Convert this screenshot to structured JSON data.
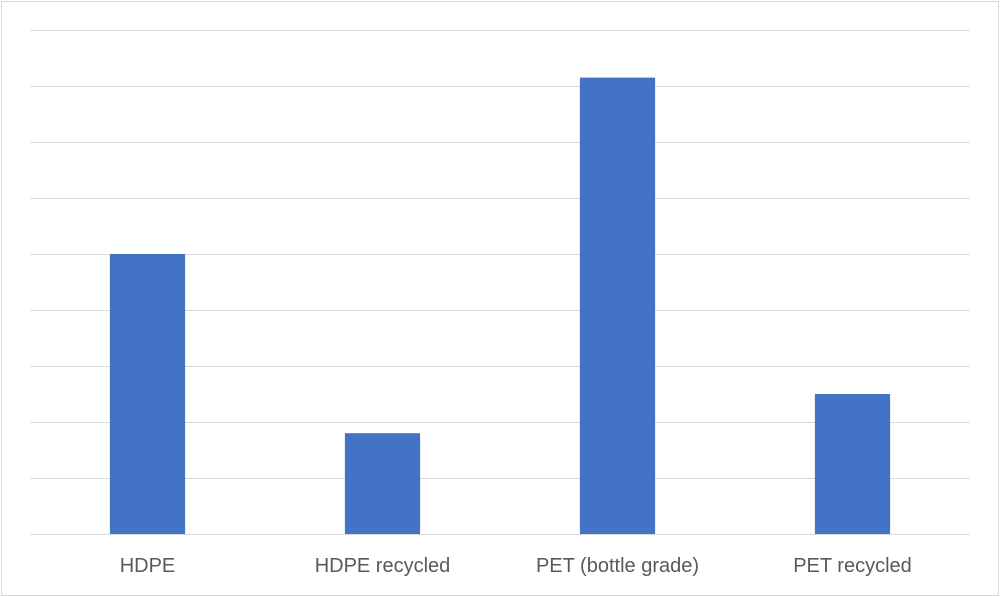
{
  "chart_data": {
    "type": "bar",
    "categories": [
      "HDPE",
      "HDPE recycled",
      "PET (bottle grade)",
      "PET recycled"
    ],
    "values": [
      5.0,
      1.8,
      8.15,
      2.5
    ],
    "ylim": [
      0,
      9
    ],
    "grid": true,
    "y_axis_labels_shown": false,
    "legend": "none",
    "bar_color": "#4472c4",
    "grid_color": "#d9d9d9"
  }
}
